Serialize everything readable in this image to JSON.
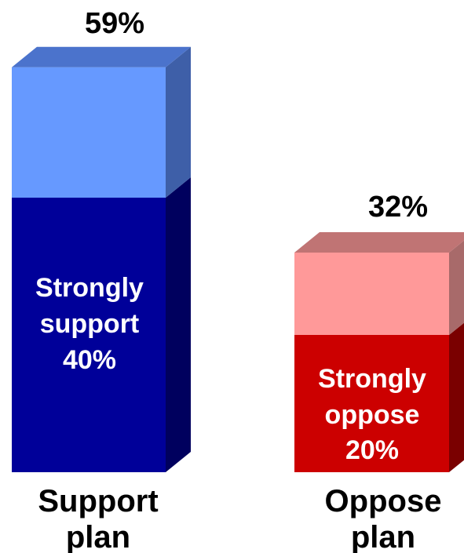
{
  "chart_data": {
    "type": "bar",
    "style": "stacked-3d",
    "ylim": [
      0,
      65
    ],
    "grid": false,
    "categories": [
      "Support plan",
      "Oppose plan"
    ],
    "bars": [
      {
        "category": "Support plan",
        "category_lines": [
          "Support",
          "plan"
        ],
        "total": 59,
        "total_label": "59%",
        "strong_value": 40,
        "strong_lines": [
          "Strongly",
          "support",
          "40%"
        ],
        "colors": {
          "strong": "#000099",
          "strong_side": "#00005e",
          "top": "#6699ff",
          "top_side": "#3e5fa8",
          "top_cap": "#4b73cc"
        }
      },
      {
        "category": "Oppose plan",
        "category_lines": [
          "Oppose",
          "plan"
        ],
        "total": 32,
        "total_label": "32%",
        "strong_value": 20,
        "strong_lines": [
          "Strongly",
          "oppose",
          "20%"
        ],
        "colors": {
          "strong": "#cc0000",
          "strong_side": "#7a0000",
          "top": "#ff9999",
          "top_side": "#a86a6a",
          "top_cap": "#c07474"
        }
      }
    ]
  }
}
